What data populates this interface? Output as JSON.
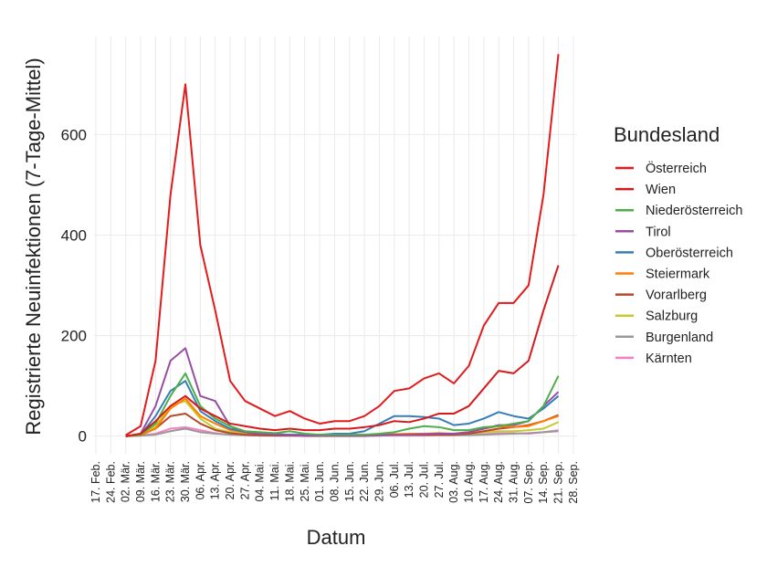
{
  "chart_data": {
    "type": "line",
    "x_label": "Datum",
    "y_label": "Registrierte Neuinfektionen (7-Tage-Mittel)",
    "legend_title": "Bundesland",
    "legend_position": "right",
    "grid": true,
    "categories": [
      "17. Feb.",
      "24. Feb.",
      "02. Mär.",
      "09. Mär.",
      "16. Mär.",
      "23. Mär.",
      "30. Mär.",
      "06. Apr.",
      "13. Apr.",
      "20. Apr.",
      "27. Apr.",
      "04. Mai.",
      "11. Mai.",
      "18. Mai.",
      "25. Mai.",
      "01. Jun.",
      "08. Jun.",
      "15. Jun.",
      "22. Jun.",
      "29. Jun.",
      "06. Jul.",
      "13. Jul.",
      "20. Jul.",
      "27. Jul.",
      "03. Aug.",
      "10. Aug.",
      "17. Aug.",
      "24. Aug.",
      "31. Aug.",
      "07. Sep.",
      "14. Sep.",
      "21. Sep.",
      "28. Sep."
    ],
    "ylim": [
      -35,
      795
    ],
    "yticks": [
      0,
      200,
      400,
      600
    ],
    "series": [
      {
        "name": "Österreich",
        "color": "#e41a1c",
        "values": [
          null,
          null,
          2,
          20,
          150,
          480,
          700,
          380,
          250,
          110,
          70,
          55,
          40,
          50,
          35,
          25,
          30,
          30,
          40,
          60,
          90,
          95,
          115,
          125,
          105,
          140,
          220,
          265,
          265,
          300,
          480,
          760,
          null
        ]
      },
      {
        "name": "Wien",
        "color": "#d7191c",
        "values": [
          null,
          null,
          0,
          5,
          30,
          60,
          80,
          55,
          40,
          25,
          20,
          15,
          12,
          15,
          12,
          12,
          15,
          15,
          18,
          22,
          30,
          28,
          35,
          45,
          45,
          60,
          95,
          130,
          125,
          150,
          250,
          340,
          null
        ]
      },
      {
        "name": "Niederösterreich",
        "color": "#4daf4a",
        "values": [
          null,
          null,
          0,
          3,
          25,
          80,
          125,
          60,
          35,
          20,
          10,
          8,
          6,
          10,
          5,
          3,
          3,
          3,
          3,
          5,
          8,
          15,
          20,
          18,
          12,
          12,
          18,
          20,
          25,
          30,
          60,
          120,
          null
        ]
      },
      {
        "name": "Tirol",
        "color": "#984ea3",
        "values": [
          null,
          null,
          0,
          5,
          60,
          150,
          175,
          80,
          70,
          20,
          8,
          5,
          3,
          2,
          1,
          1,
          1,
          1,
          1,
          2,
          3,
          3,
          4,
          5,
          5,
          8,
          15,
          22,
          22,
          30,
          60,
          88,
          null
        ]
      },
      {
        "name": "Oberösterreich",
        "color": "#377eb8",
        "values": [
          null,
          null,
          0,
          3,
          40,
          90,
          110,
          50,
          30,
          15,
          8,
          5,
          4,
          3,
          3,
          3,
          5,
          5,
          10,
          25,
          40,
          40,
          38,
          35,
          22,
          25,
          35,
          48,
          40,
          35,
          55,
          80,
          null
        ]
      },
      {
        "name": "Steiermark",
        "color": "#ff7f00",
        "values": [
          null,
          null,
          0,
          2,
          15,
          55,
          75,
          40,
          25,
          12,
          8,
          5,
          4,
          3,
          2,
          2,
          2,
          2,
          3,
          3,
          4,
          5,
          5,
          6,
          5,
          8,
          15,
          20,
          18,
          20,
          30,
          40,
          null
        ]
      },
      {
        "name": "Vorarlberg",
        "color": "#b5482a",
        "values": [
          null,
          null,
          0,
          2,
          15,
          40,
          45,
          25,
          12,
          6,
          3,
          2,
          1,
          1,
          1,
          1,
          1,
          1,
          1,
          2,
          3,
          3,
          3,
          3,
          3,
          5,
          10,
          15,
          18,
          22,
          30,
          42,
          null
        ]
      },
      {
        "name": "Salzburg",
        "color": "#c8c832",
        "values": [
          null,
          null,
          0,
          2,
          20,
          60,
          70,
          35,
          15,
          8,
          5,
          3,
          2,
          2,
          1,
          1,
          1,
          1,
          1,
          2,
          3,
          4,
          5,
          5,
          4,
          5,
          8,
          10,
          10,
          12,
          15,
          28,
          null
        ]
      },
      {
        "name": "Burgenland",
        "color": "#999999",
        "values": [
          null,
          null,
          0,
          1,
          3,
          10,
          15,
          8,
          5,
          3,
          2,
          1,
          1,
          1,
          1,
          1,
          1,
          1,
          1,
          1,
          2,
          2,
          2,
          2,
          2,
          2,
          3,
          4,
          5,
          6,
          8,
          10,
          null
        ]
      },
      {
        "name": "Kärnten",
        "color": "#f781bf",
        "values": [
          null,
          null,
          0,
          1,
          5,
          15,
          18,
          12,
          6,
          3,
          2,
          1,
          1,
          1,
          0,
          0,
          0,
          0,
          0,
          1,
          1,
          1,
          1,
          2,
          2,
          3,
          4,
          6,
          6,
          5,
          8,
          12,
          null
        ]
      }
    ]
  }
}
